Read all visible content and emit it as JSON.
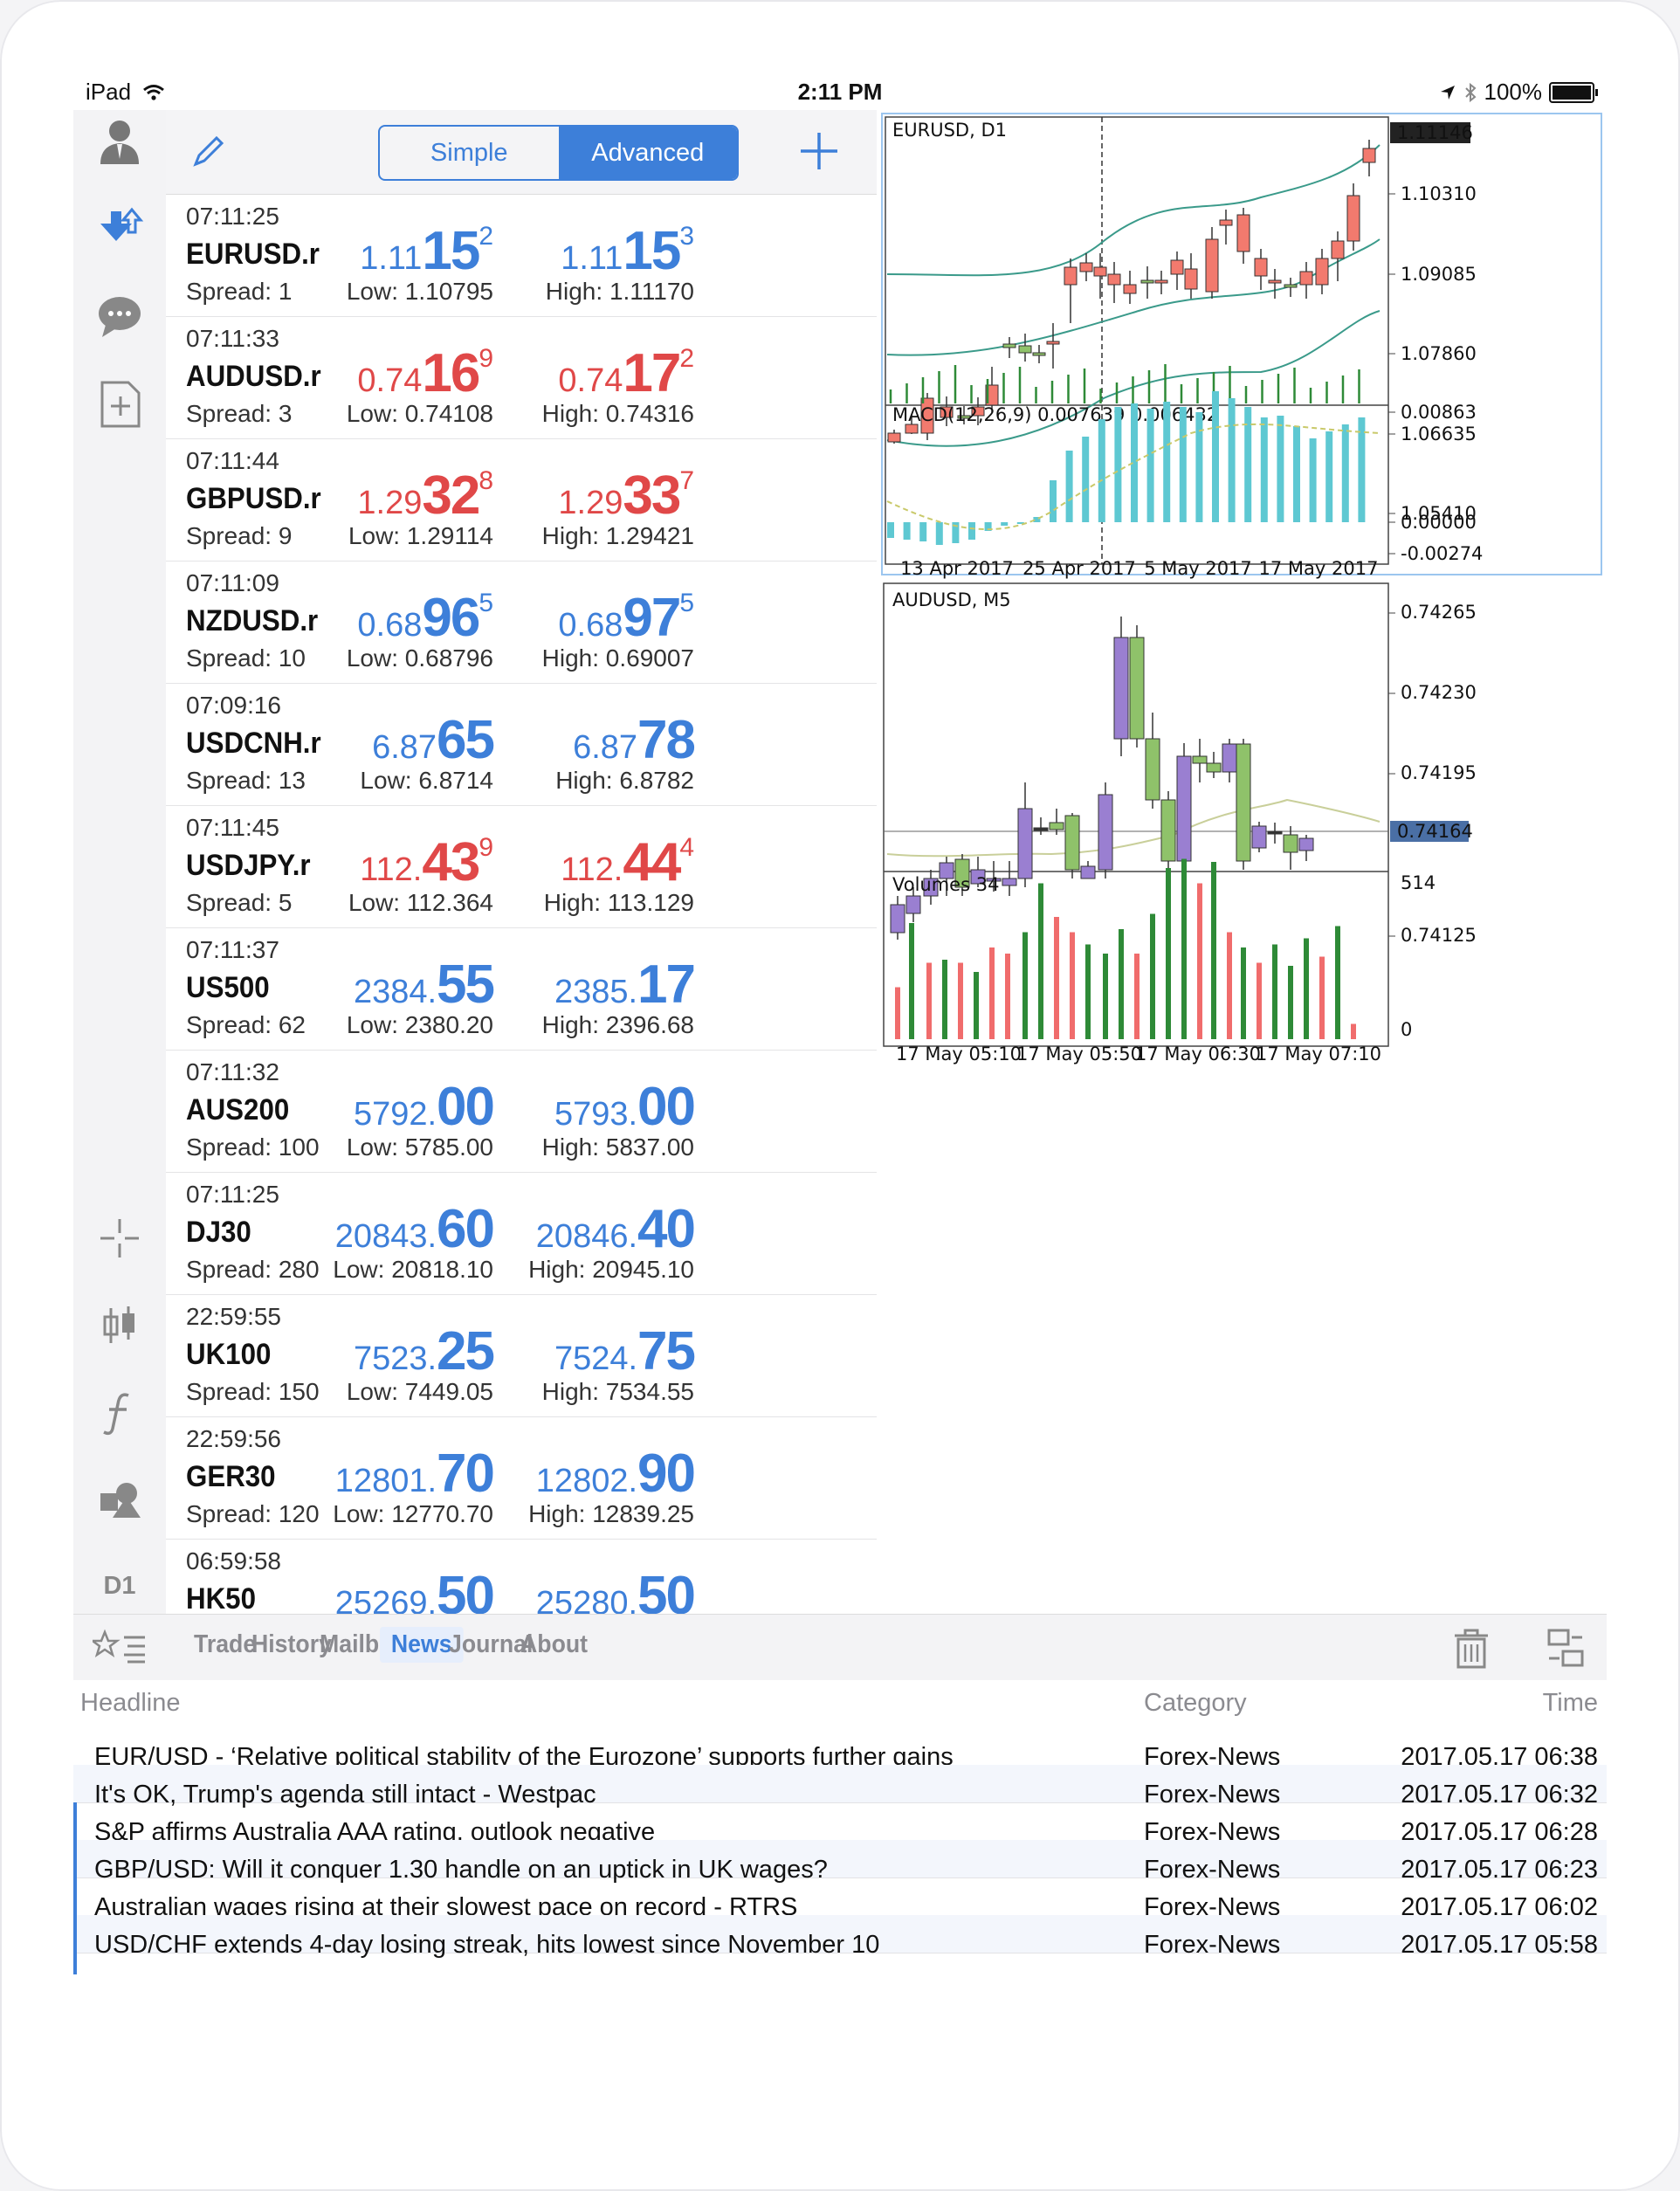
{
  "status": {
    "device": "iPad",
    "time": "2:11 PM",
    "battery": "100%"
  },
  "toolbar_bottom_label": "D1",
  "quotes_header": {
    "simple_label": "Simple",
    "advanced_label": "Advanced"
  },
  "quotes": [
    {
      "time": "07:11:25",
      "symbol": "EURUSD.r",
      "spread": "Spread: 1",
      "bid_small": "1.11",
      "bid_big": "15",
      "bid_pip": "2",
      "ask_small": "1.11",
      "ask_big": "15",
      "ask_pip": "3",
      "low": "Low: 1.10795",
      "high": "High: 1.11170",
      "color": "blue"
    },
    {
      "time": "07:11:33",
      "symbol": "AUDUSD.r",
      "spread": "Spread: 3",
      "bid_small": "0.74",
      "bid_big": "16",
      "bid_pip": "9",
      "ask_small": "0.74",
      "ask_big": "17",
      "ask_pip": "2",
      "low": "Low: 0.74108",
      "high": "High: 0.74316",
      "color": "red"
    },
    {
      "time": "07:11:44",
      "symbol": "GBPUSD.r",
      "spread": "Spread: 9",
      "bid_small": "1.29",
      "bid_big": "32",
      "bid_pip": "8",
      "ask_small": "1.29",
      "ask_big": "33",
      "ask_pip": "7",
      "low": "Low: 1.29114",
      "high": "High: 1.29421",
      "color": "red"
    },
    {
      "time": "07:11:09",
      "symbol": "NZDUSD.r",
      "spread": "Spread: 10",
      "bid_small": "0.68",
      "bid_big": "96",
      "bid_pip": "5",
      "ask_small": "0.68",
      "ask_big": "97",
      "ask_pip": "5",
      "low": "Low: 0.68796",
      "high": "High: 0.69007",
      "color": "blue"
    },
    {
      "time": "07:09:16",
      "symbol": "USDCNH.r",
      "spread": "Spread: 13",
      "bid_small": "6.87",
      "bid_big": "65",
      "bid_pip": "",
      "ask_small": "6.87",
      "ask_big": "78",
      "ask_pip": "",
      "low": "Low: 6.8714",
      "high": "High: 6.8782",
      "color": "blue"
    },
    {
      "time": "07:11:45",
      "symbol": "USDJPY.r",
      "spread": "Spread: 5",
      "bid_small": "112.",
      "bid_big": "43",
      "bid_pip": "9",
      "ask_small": "112.",
      "ask_big": "44",
      "ask_pip": "4",
      "low": "Low: 112.364",
      "high": "High: 113.129",
      "color": "red"
    },
    {
      "time": "07:11:37",
      "symbol": "US500",
      "spread": "Spread: 62",
      "bid_small": "2384.",
      "bid_big": "55",
      "bid_pip": "",
      "ask_small": "2385.",
      "ask_big": "17",
      "ask_pip": "",
      "low": "Low: 2380.20",
      "high": "High: 2396.68",
      "color": "blue"
    },
    {
      "time": "07:11:32",
      "symbol": "AUS200",
      "spread": "Spread: 100",
      "bid_small": "5792.",
      "bid_big": "00",
      "bid_pip": "",
      "ask_small": "5793.",
      "ask_big": "00",
      "ask_pip": "",
      "low": "Low: 5785.00",
      "high": "High: 5837.00",
      "color": "blue"
    },
    {
      "time": "07:11:25",
      "symbol": "DJ30",
      "spread": "Spread: 280",
      "bid_small": "20843.",
      "bid_big": "60",
      "bid_pip": "",
      "ask_small": "20846.",
      "ask_big": "40",
      "ask_pip": "",
      "low": "Low: 20818.10",
      "high": "High: 20945.10",
      "color": "blue"
    },
    {
      "time": "22:59:55",
      "symbol": "UK100",
      "spread": "Spread: 150",
      "bid_small": "7523.",
      "bid_big": "25",
      "bid_pip": "",
      "ask_small": "7524.",
      "ask_big": "75",
      "ask_pip": "",
      "low": "Low: 7449.05",
      "high": "High: 7534.55",
      "color": "blue"
    },
    {
      "time": "22:59:56",
      "symbol": "GER30",
      "spread": "Spread: 120",
      "bid_small": "12801.",
      "bid_big": "70",
      "bid_pip": "",
      "ask_small": "12802.",
      "ask_big": "90",
      "ask_pip": "",
      "low": "Low: 12770.70",
      "high": "High: 12839.25",
      "color": "blue"
    },
    {
      "time": "06:59:58",
      "symbol": "HK50",
      "spread": "",
      "bid_small": "25269.",
      "bid_big": "50",
      "bid_pip": "",
      "ask_small": "25280.",
      "ask_big": "50",
      "ask_pip": "",
      "low": "",
      "high": "",
      "color": "blue"
    }
  ],
  "chart1": {
    "title": "EURUSD, D1",
    "current_price": "1.11146",
    "price_ticks": [
      "1.10310",
      "1.09085",
      "1.07860",
      "1.06635",
      "1.05410"
    ],
    "macd_label": "MACD(12,26,9) 0.007639 0.006432",
    "macd_ticks": [
      "0.00863",
      "0.00000",
      "-0.00274"
    ],
    "date_ticks": [
      "13 Apr 2017",
      "25 Apr 2017",
      "5 May 2017",
      "17 May 2017"
    ]
  },
  "chart2": {
    "title": "AUDUSD, M5",
    "current_price": "0.74164",
    "price_ticks": [
      "0.74265",
      "0.74230",
      "0.74195",
      "0.74125"
    ],
    "volumes_label": "Volumes 34",
    "volume_ticks": [
      "514",
      "0"
    ],
    "time_ticks": [
      "17 May 05:10",
      "17 May 05:50",
      "17 May 06:30",
      "17 May 07:10"
    ]
  },
  "tabs": [
    "Trade",
    "History",
    "Mailbox",
    "News",
    "Journal",
    "About"
  ],
  "active_tab": "News",
  "news_header": {
    "headline": "Headline",
    "category": "Category",
    "time": "Time"
  },
  "news": [
    {
      "headline": "EUR/USD - ‘Relative political stability of the Eurozone’ supports further gains",
      "category": "Forex-News",
      "time": "2017.05.17 06:38"
    },
    {
      "headline": "It's OK, Trump's agenda still intact - Westpac",
      "category": "Forex-News",
      "time": "2017.05.17 06:32"
    },
    {
      "headline": "S&P affirms Australia AAA rating, outlook negative",
      "category": "Forex-News",
      "time": "2017.05.17 06:28"
    },
    {
      "headline": "GBP/USD: Will it conquer 1.30 handle on an uptick in UK wages?",
      "category": "Forex-News",
      "time": "2017.05.17 06:23"
    },
    {
      "headline": "Australian wages rising at their slowest pace on record - RTRS",
      "category": "Forex-News",
      "time": "2017.05.17 06:02"
    },
    {
      "headline": "USD/CHF extends 4-day losing streak, hits lowest since November 10",
      "category": "Forex-News",
      "time": "2017.05.17 05:58"
    }
  ],
  "colors": {
    "accent": "#3d7fd9",
    "bear": "#e04848",
    "bull_candle": "#8fc26a",
    "bear_candle": "#f27a6e",
    "purple_candle": "#9a7fd1",
    "macd": "#5ec8d2",
    "vol_up": "#2e8a37",
    "vol_down": "#f06c6c"
  }
}
